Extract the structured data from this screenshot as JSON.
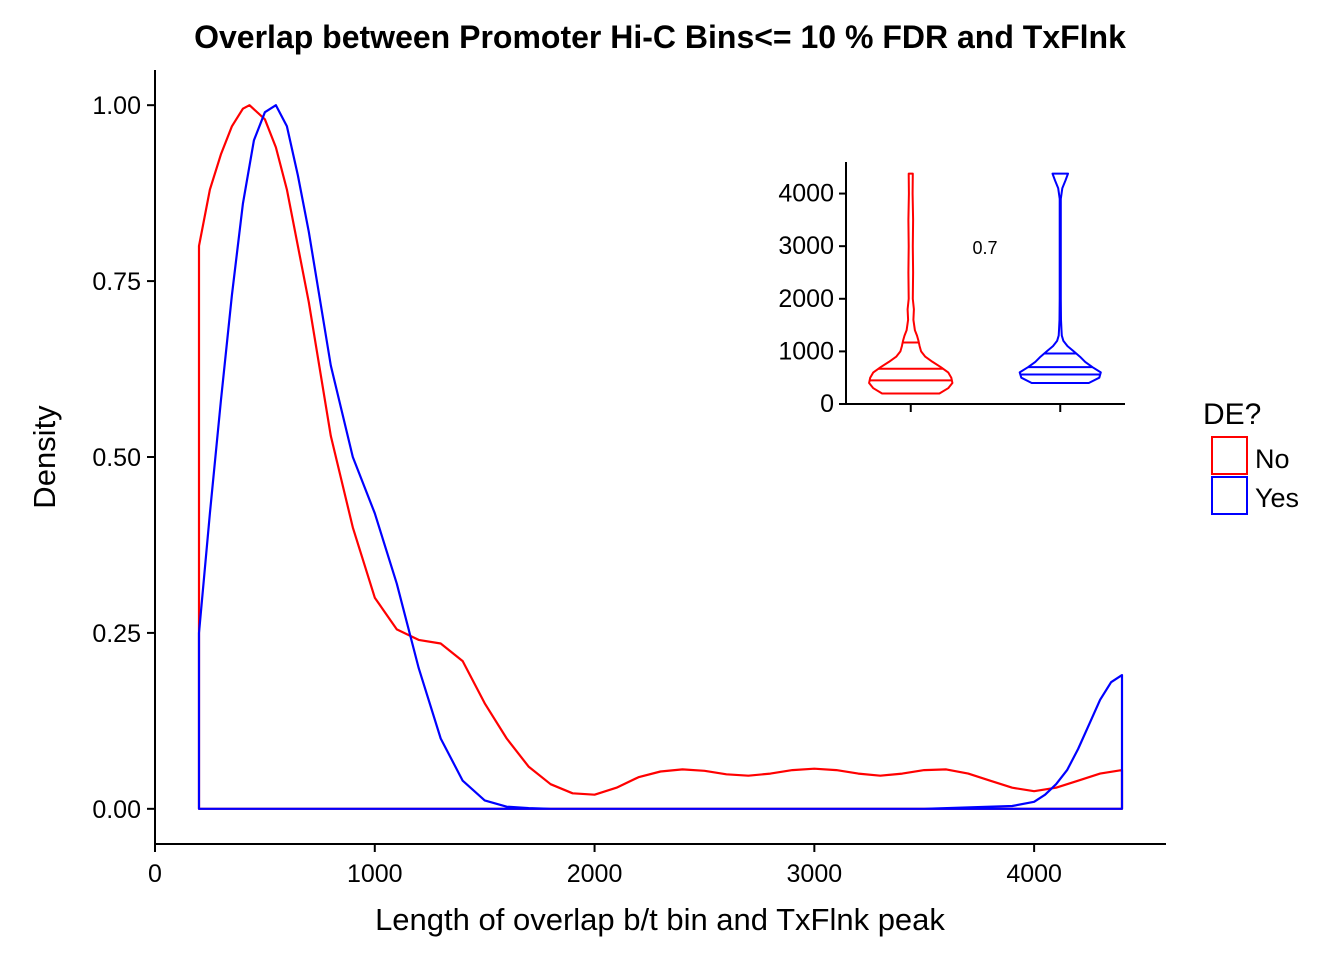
{
  "chart_data": [
    {
      "type": "line",
      "title": "Overlap between Promoter Hi-C Bins<= 10 % FDR and TxFlnk",
      "xlabel": "Length of overlap b/t bin and TxFlnk peak",
      "ylabel": "Density",
      "xlim": [
        0,
        4600
      ],
      "ylim": [
        -0.05,
        1.05
      ],
      "x_ticks": [
        "0",
        "1000",
        "2000",
        "3000",
        "4000"
      ],
      "y_ticks": [
        "0.00",
        "0.25",
        "0.50",
        "0.75",
        "1.00"
      ],
      "grid": false,
      "legend": {
        "title": "DE?",
        "position": "right",
        "entries": [
          "No",
          "Yes"
        ]
      },
      "series": [
        {
          "name": "No",
          "color": "#ff0000",
          "x": [
            200,
            250,
            300,
            350,
            400,
            430,
            500,
            550,
            600,
            700,
            800,
            900,
            1000,
            1100,
            1200,
            1300,
            1400,
            1500,
            1600,
            1700,
            1800,
            1900,
            2000,
            2100,
            2200,
            2300,
            2400,
            2500,
            2600,
            2700,
            2800,
            2900,
            3000,
            3100,
            3200,
            3300,
            3400,
            3500,
            3600,
            3700,
            3800,
            3900,
            4000,
            4100,
            4200,
            4300,
            4400
          ],
          "y": [
            0.8,
            0.88,
            0.93,
            0.97,
            0.995,
            1.0,
            0.98,
            0.94,
            0.88,
            0.72,
            0.53,
            0.4,
            0.3,
            0.255,
            0.24,
            0.235,
            0.21,
            0.15,
            0.1,
            0.06,
            0.035,
            0.022,
            0.02,
            0.03,
            0.045,
            0.053,
            0.056,
            0.054,
            0.049,
            0.047,
            0.05,
            0.055,
            0.057,
            0.055,
            0.05,
            0.047,
            0.05,
            0.055,
            0.056,
            0.05,
            0.04,
            0.03,
            0.025,
            0.03,
            0.04,
            0.05,
            0.055
          ]
        },
        {
          "name": "Yes",
          "color": "#0000ff",
          "x": [
            200,
            250,
            300,
            350,
            400,
            450,
            500,
            550,
            600,
            650,
            700,
            800,
            900,
            1000,
            1100,
            1200,
            1300,
            1400,
            1500,
            1600,
            1700,
            1800,
            2000,
            2500,
            3000,
            3500,
            3900,
            4000,
            4050,
            4100,
            4150,
            4200,
            4250,
            4300,
            4350,
            4400
          ],
          "y": [
            0.25,
            0.42,
            0.58,
            0.73,
            0.86,
            0.95,
            0.99,
            1.0,
            0.97,
            0.9,
            0.82,
            0.63,
            0.5,
            0.42,
            0.32,
            0.2,
            0.1,
            0.04,
            0.012,
            0.003,
            0.001,
            0.0,
            0.0,
            0.0,
            0.0,
            0.0,
            0.004,
            0.01,
            0.02,
            0.035,
            0.055,
            0.085,
            0.12,
            0.155,
            0.18,
            0.19
          ]
        }
      ]
    },
    {
      "type": "violin",
      "annotation": "0.7",
      "ylim": [
        0,
        4600
      ],
      "y_ticks": [
        "0",
        "1000",
        "2000",
        "3000",
        "4000"
      ],
      "groups": [
        {
          "name": "No",
          "color": "#ff0000",
          "quantiles": [
            450,
            670,
            1170
          ],
          "profile": [
            [
              200,
              0.55
            ],
            [
              300,
              0.72
            ],
            [
              400,
              0.8
            ],
            [
              500,
              0.78
            ],
            [
              600,
              0.72
            ],
            [
              700,
              0.58
            ],
            [
              800,
              0.42
            ],
            [
              900,
              0.28
            ],
            [
              1000,
              0.2
            ],
            [
              1100,
              0.17
            ],
            [
              1200,
              0.15
            ],
            [
              1300,
              0.12
            ],
            [
              1400,
              0.08
            ],
            [
              1600,
              0.05
            ],
            [
              1800,
              0.06
            ],
            [
              2000,
              0.04
            ],
            [
              2500,
              0.045
            ],
            [
              3000,
              0.04
            ],
            [
              3500,
              0.045
            ],
            [
              4000,
              0.035
            ],
            [
              4380,
              0.04
            ]
          ]
        },
        {
          "name": "Yes",
          "color": "#0000ff",
          "quantiles": [
            560,
            700,
            960
          ],
          "profile": [
            [
              400,
              0.55
            ],
            [
              500,
              0.75
            ],
            [
              600,
              0.78
            ],
            [
              700,
              0.62
            ],
            [
              800,
              0.48
            ],
            [
              900,
              0.38
            ],
            [
              1000,
              0.26
            ],
            [
              1100,
              0.14
            ],
            [
              1200,
              0.06
            ],
            [
              1300,
              0.03
            ],
            [
              1400,
              0.025
            ],
            [
              1600,
              0.015
            ],
            [
              2000,
              0.01
            ],
            [
              2500,
              0.01
            ],
            [
              3000,
              0.01
            ],
            [
              3500,
              0.01
            ],
            [
              3900,
              0.01
            ],
            [
              4100,
              0.04
            ],
            [
              4250,
              0.1
            ],
            [
              4380,
              0.15
            ]
          ]
        }
      ]
    }
  ]
}
